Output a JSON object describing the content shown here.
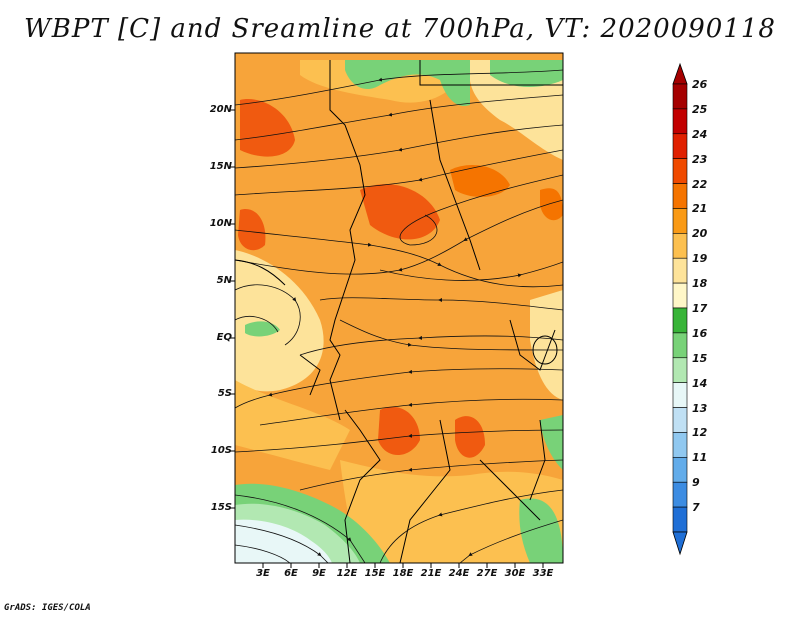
{
  "title": "WBPT [C] and Sreamline at 700hPa, VT: 2020090118",
  "credit": "GrADS: IGES/COLA",
  "map": {
    "lat_labels": [
      "20N",
      "15N",
      "10N",
      "5N",
      "EQ",
      "5S",
      "10S",
      "15S"
    ],
    "lon_labels": [
      "3E",
      "6E",
      "9E",
      "12E",
      "15E",
      "18E",
      "21E",
      "24E",
      "27E",
      "30E",
      "33E"
    ]
  },
  "colorbar": {
    "labels": [
      "26",
      "25",
      "24",
      "23",
      "22",
      "21",
      "20",
      "19",
      "18",
      "17",
      "16",
      "15",
      "14",
      "13",
      "12",
      "11",
      "9",
      "7"
    ],
    "colors": [
      "#a50000",
      "#c20000",
      "#e02000",
      "#f04a00",
      "#f57400",
      "#f99a16",
      "#fcc050",
      "#fde39a",
      "#fff7c8",
      "#38b438",
      "#78d278",
      "#b2e8b2",
      "#e8f7f7",
      "#c0e0f4",
      "#90c8f0",
      "#62acea",
      "#3c8ce2",
      "#1f6fd6"
    ]
  }
}
